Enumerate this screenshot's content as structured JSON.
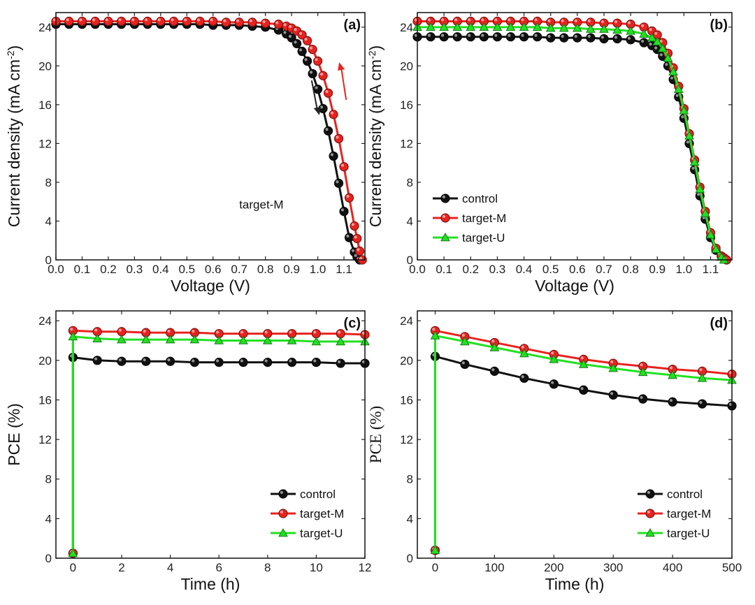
{
  "chart_data": [
    {
      "id": "a",
      "type": "scatter",
      "panel_label": "(a)",
      "xlabel": "Voltage (V)",
      "ylabel": "Current density (mA cm-2)",
      "xlim": [
        0.0,
        1.18
      ],
      "ylim": [
        0,
        25.5
      ],
      "xticks": [
        0.0,
        0.1,
        0.2,
        0.3,
        0.4,
        0.5,
        0.6,
        0.7,
        0.8,
        0.9,
        1.0,
        1.1
      ],
      "xtick_labels": [
        "0.0",
        "0.1",
        "0.2",
        "0.3",
        "0.4",
        "0.5",
        "0.6",
        "0.7",
        "0.8",
        "0.9",
        "1.0",
        "1.1"
      ],
      "yticks": [
        0,
        4,
        8,
        12,
        16,
        20,
        24
      ],
      "ytick_labels": [
        "0",
        "4",
        "8",
        "12",
        "16",
        "20",
        "24"
      ],
      "annotation": "target-M",
      "arrows": [
        {
          "color": "#222222",
          "direction": "down"
        },
        {
          "color": "#e8231f",
          "direction": "up"
        }
      ],
      "series": [
        {
          "color": "#111111",
          "marker": "circle",
          "x": [
            0.0,
            0.05,
            0.1,
            0.15,
            0.2,
            0.25,
            0.3,
            0.35,
            0.4,
            0.45,
            0.5,
            0.55,
            0.6,
            0.65,
            0.7,
            0.75,
            0.8,
            0.85,
            0.88,
            0.9,
            0.92,
            0.94,
            0.96,
            0.98,
            1.0,
            1.02,
            1.04,
            1.06,
            1.08,
            1.1,
            1.12,
            1.14,
            1.15,
            1.16
          ],
          "y": [
            24.3,
            24.3,
            24.3,
            24.3,
            24.3,
            24.3,
            24.3,
            24.3,
            24.3,
            24.3,
            24.3,
            24.3,
            24.2,
            24.2,
            24.2,
            24.1,
            24.0,
            23.7,
            23.3,
            22.9,
            22.3,
            21.5,
            20.5,
            19.2,
            17.6,
            15.6,
            13.3,
            10.7,
            7.9,
            5.0,
            2.3,
            0.8,
            0.3,
            0.0
          ]
        },
        {
          "color": "#e8231f",
          "marker": "circle",
          "x": [
            0.0,
            0.05,
            0.1,
            0.15,
            0.2,
            0.25,
            0.3,
            0.35,
            0.4,
            0.45,
            0.5,
            0.55,
            0.6,
            0.65,
            0.7,
            0.75,
            0.8,
            0.85,
            0.88,
            0.9,
            0.92,
            0.94,
            0.96,
            0.98,
            1.0,
            1.02,
            1.04,
            1.06,
            1.08,
            1.1,
            1.12,
            1.14,
            1.15,
            1.16,
            1.17
          ],
          "y": [
            24.6,
            24.6,
            24.6,
            24.6,
            24.6,
            24.6,
            24.6,
            24.6,
            24.6,
            24.6,
            24.6,
            24.6,
            24.6,
            24.5,
            24.5,
            24.5,
            24.4,
            24.3,
            24.1,
            23.9,
            23.6,
            23.2,
            22.6,
            21.7,
            20.5,
            19.0,
            17.2,
            15.0,
            12.5,
            9.6,
            6.4,
            3.5,
            2.2,
            0.9,
            0.0
          ]
        }
      ]
    },
    {
      "id": "b",
      "type": "scatter",
      "panel_label": "(b)",
      "xlabel": "Voltage (V)",
      "ylabel": "Current density (mA cm-2)",
      "xlim": [
        0.0,
        1.18
      ],
      "ylim": [
        0,
        25.5
      ],
      "xticks": [
        0.0,
        0.1,
        0.2,
        0.3,
        0.4,
        0.5,
        0.6,
        0.7,
        0.8,
        0.9,
        1.0,
        1.1
      ],
      "xtick_labels": [
        "0.0",
        "0.1",
        "0.2",
        "0.3",
        "0.4",
        "0.5",
        "0.6",
        "0.7",
        "0.8",
        "0.9",
        "1.0",
        "1.1"
      ],
      "yticks": [
        0,
        4,
        8,
        12,
        16,
        20,
        24
      ],
      "ytick_labels": [
        "0",
        "4",
        "8",
        "12",
        "16",
        "20",
        "24"
      ],
      "legend_position": "bottom-left",
      "series": [
        {
          "name": "control",
          "color": "#111111",
          "marker": "circle",
          "x": [
            0.0,
            0.05,
            0.1,
            0.15,
            0.2,
            0.25,
            0.3,
            0.35,
            0.4,
            0.45,
            0.5,
            0.55,
            0.6,
            0.65,
            0.7,
            0.75,
            0.8,
            0.85,
            0.88,
            0.9,
            0.92,
            0.94,
            0.96,
            0.98,
            1.0,
            1.02,
            1.04,
            1.06,
            1.08,
            1.1,
            1.12,
            1.14,
            1.15,
            1.16
          ],
          "y": [
            23.0,
            23.0,
            23.0,
            23.0,
            23.0,
            23.0,
            23.0,
            23.0,
            23.0,
            23.0,
            22.9,
            22.9,
            22.9,
            22.9,
            22.8,
            22.8,
            22.7,
            22.4,
            22.1,
            21.7,
            21.0,
            20.0,
            18.6,
            16.8,
            14.6,
            12.0,
            9.3,
            6.6,
            4.2,
            2.3,
            1.0,
            0.4,
            0.2,
            0.0
          ]
        },
        {
          "name": "target-M",
          "color": "#e8231f",
          "marker": "circle",
          "x": [
            0.0,
            0.05,
            0.1,
            0.15,
            0.2,
            0.25,
            0.3,
            0.35,
            0.4,
            0.45,
            0.5,
            0.55,
            0.6,
            0.65,
            0.7,
            0.75,
            0.8,
            0.85,
            0.88,
            0.9,
            0.92,
            0.94,
            0.96,
            0.98,
            1.0,
            1.02,
            1.04,
            1.06,
            1.08,
            1.1,
            1.12,
            1.14,
            1.15,
            1.16
          ],
          "y": [
            24.6,
            24.6,
            24.6,
            24.6,
            24.6,
            24.6,
            24.6,
            24.6,
            24.6,
            24.6,
            24.5,
            24.5,
            24.5,
            24.5,
            24.4,
            24.4,
            24.3,
            24.0,
            23.6,
            23.2,
            22.4,
            21.3,
            19.8,
            17.9,
            15.6,
            13.0,
            10.3,
            7.5,
            5.0,
            2.8,
            1.2,
            0.4,
            0.2,
            0.0
          ]
        },
        {
          "name": "target-U",
          "color": "#22e022",
          "marker": "triangle",
          "x": [
            0.0,
            0.05,
            0.1,
            0.15,
            0.2,
            0.25,
            0.3,
            0.35,
            0.4,
            0.45,
            0.5,
            0.55,
            0.6,
            0.65,
            0.7,
            0.75,
            0.8,
            0.85,
            0.88,
            0.9,
            0.92,
            0.94,
            0.96,
            0.98,
            1.0,
            1.02,
            1.04,
            1.06,
            1.08,
            1.1,
            1.12,
            1.14,
            1.15
          ],
          "y": [
            24.0,
            24.0,
            24.0,
            24.0,
            24.0,
            24.0,
            24.0,
            24.0,
            24.0,
            24.0,
            23.9,
            23.9,
            23.9,
            23.8,
            23.8,
            23.7,
            23.6,
            23.3,
            22.9,
            22.5,
            21.8,
            20.8,
            19.4,
            17.6,
            15.4,
            12.8,
            10.1,
            7.3,
            4.8,
            2.6,
            1.1,
            0.3,
            0.0
          ]
        }
      ]
    },
    {
      "id": "c",
      "type": "line",
      "panel_label": "(c)",
      "xlabel": "Time (h)",
      "ylabel": "PCE (%)",
      "xlim": [
        -0.7,
        12
      ],
      "ylim": [
        0,
        25
      ],
      "xticks": [
        0,
        2,
        4,
        6,
        8,
        10,
        12
      ],
      "xtick_labels": [
        "0",
        "2",
        "4",
        "6",
        "8",
        "10",
        "12"
      ],
      "yticks": [
        0,
        4,
        8,
        12,
        16,
        20,
        24
      ],
      "ytick_labels": [
        "0",
        "4",
        "8",
        "12",
        "16",
        "20",
        "24"
      ],
      "legend_position": "bottom-right",
      "series": [
        {
          "name": "control",
          "color": "#111111",
          "marker": "circle",
          "x": [
            0,
            0,
            1,
            2,
            3,
            4,
            5,
            6,
            7,
            8,
            9,
            10,
            11,
            12
          ],
          "y": [
            0.5,
            20.3,
            20.0,
            19.9,
            19.9,
            19.9,
            19.8,
            19.8,
            19.8,
            19.8,
            19.8,
            19.8,
            19.7,
            19.7
          ]
        },
        {
          "name": "target-M",
          "color": "#e8231f",
          "marker": "circle",
          "x": [
            0,
            0,
            1,
            2,
            3,
            4,
            5,
            6,
            7,
            8,
            9,
            10,
            11,
            12
          ],
          "y": [
            0.5,
            23.0,
            22.9,
            22.9,
            22.8,
            22.8,
            22.8,
            22.7,
            22.7,
            22.7,
            22.7,
            22.7,
            22.7,
            22.6
          ]
        },
        {
          "name": "target-U",
          "color": "#22e022",
          "marker": "triangle",
          "x": [
            0,
            0,
            1,
            2,
            3,
            4,
            5,
            6,
            7,
            8,
            9,
            10,
            11,
            12
          ],
          "y": [
            0.5,
            22.4,
            22.2,
            22.1,
            22.1,
            22.1,
            22.1,
            22.0,
            22.0,
            22.0,
            22.0,
            21.9,
            21.9,
            21.9
          ]
        }
      ]
    },
    {
      "id": "d",
      "type": "line",
      "panel_label": "(d)",
      "xlabel": "Time (h)",
      "ylabel": "PCE (%)",
      "xlim": [
        -30,
        500
      ],
      "ylim": [
        0,
        25
      ],
      "xticks": [
        0,
        100,
        200,
        300,
        400,
        500
      ],
      "xtick_labels": [
        "0",
        "100",
        "200",
        "300",
        "400",
        "500"
      ],
      "yticks": [
        0,
        4,
        8,
        12,
        16,
        20,
        24
      ],
      "ytick_labels": [
        "0",
        "4",
        "8",
        "12",
        "16",
        "20",
        "24"
      ],
      "legend_position": "bottom-right",
      "series": [
        {
          "name": "control",
          "color": "#111111",
          "marker": "circle",
          "x": [
            0,
            0,
            50,
            100,
            150,
            200,
            250,
            300,
            350,
            400,
            450,
            500
          ],
          "y": [
            0.8,
            20.4,
            19.6,
            18.9,
            18.2,
            17.6,
            17.0,
            16.5,
            16.1,
            15.8,
            15.6,
            15.4
          ]
        },
        {
          "name": "target-M",
          "color": "#e8231f",
          "marker": "circle",
          "x": [
            0,
            0,
            50,
            100,
            150,
            200,
            250,
            300,
            350,
            400,
            450,
            500
          ],
          "y": [
            0.8,
            23.0,
            22.4,
            21.8,
            21.2,
            20.6,
            20.1,
            19.7,
            19.4,
            19.1,
            18.9,
            18.6
          ]
        },
        {
          "name": "target-U",
          "color": "#22e022",
          "marker": "triangle",
          "x": [
            0,
            0,
            50,
            100,
            150,
            200,
            250,
            300,
            350,
            400,
            450,
            500
          ],
          "y": [
            0.8,
            22.5,
            21.9,
            21.3,
            20.7,
            20.1,
            19.6,
            19.2,
            18.8,
            18.5,
            18.2,
            18.0
          ]
        }
      ]
    }
  ]
}
